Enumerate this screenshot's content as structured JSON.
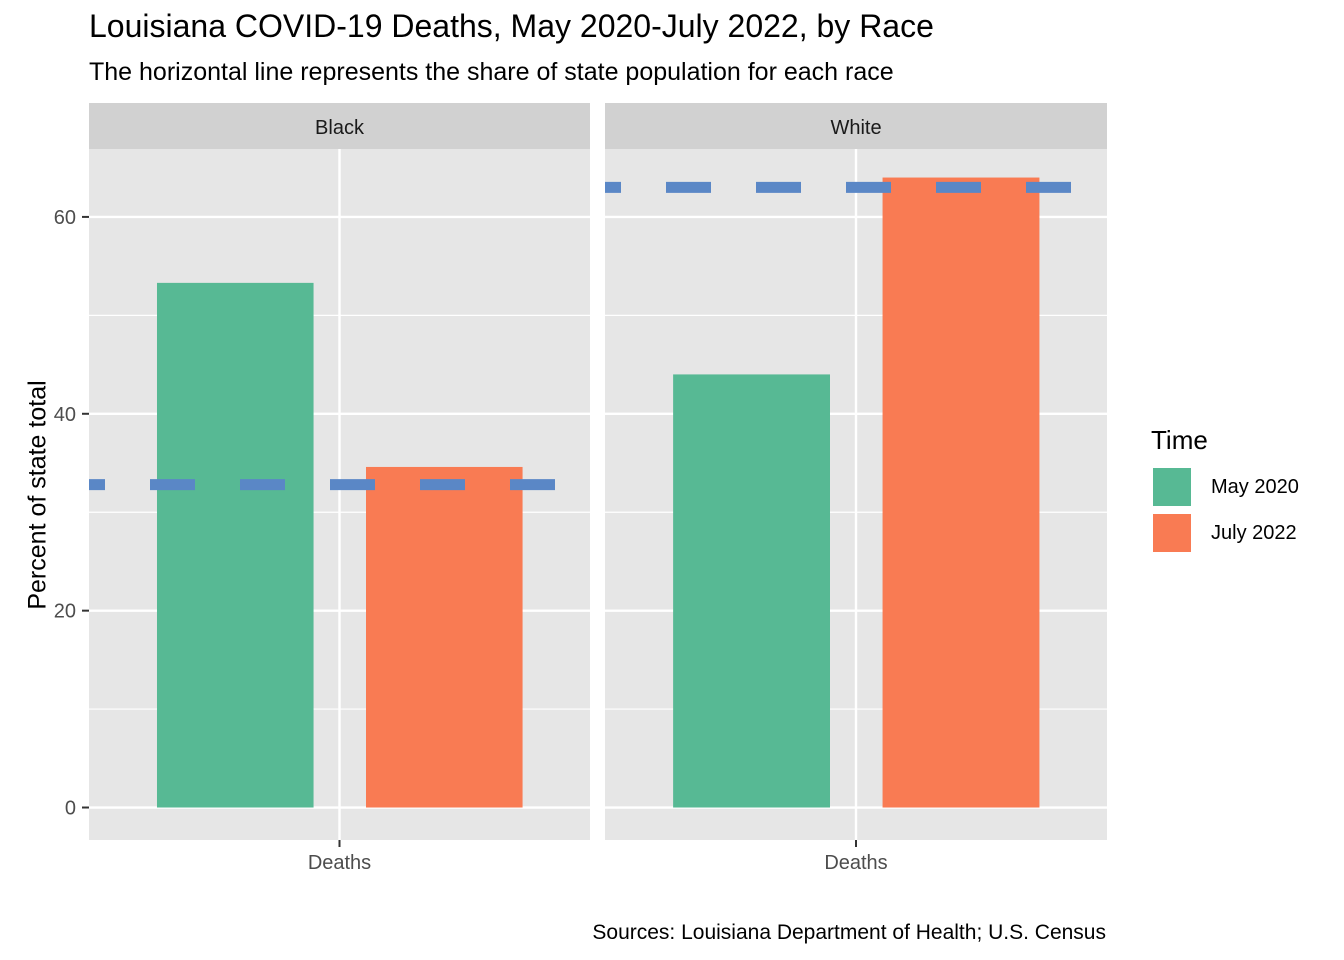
{
  "title": "Louisiana COVID-19 Deaths, May 2020-July 2022, by Race",
  "subtitle": "The horizontal line represents the share of state population for each race",
  "caption": "Sources: Louisiana Department of Health; U.S. Census",
  "colors": {
    "May 2020": "#57b994",
    "July 2022": "#f97b53",
    "reference_line": "#5a87c6",
    "panel_bg": "#e6e6e6",
    "strip_bg": "#d1d1d1"
  },
  "chart_data": {
    "type": "bar",
    "ylabel": "Percent of state total",
    "ylim": [
      -3.3,
      66.9
    ],
    "yticks": [
      0,
      20,
      40,
      60
    ],
    "grid": true,
    "legend": {
      "title": "Time",
      "placement": "right",
      "entries": [
        "May 2020",
        "July 2022"
      ]
    },
    "facets": [
      {
        "name": "Black",
        "category": "Deaths",
        "series": [
          {
            "name": "May 2020",
            "value": 53.3
          },
          {
            "name": "July 2022",
            "value": 34.6
          }
        ],
        "population_share": 32.8
      },
      {
        "name": "White",
        "category": "Deaths",
        "series": [
          {
            "name": "May 2020",
            "value": 44.0
          },
          {
            "name": "July 2022",
            "value": 64.0
          }
        ],
        "population_share": 63.0
      }
    ]
  }
}
